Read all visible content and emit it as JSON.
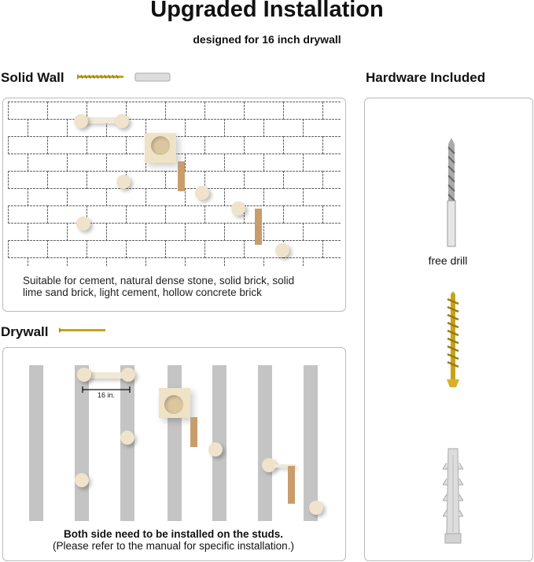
{
  "header": {
    "title": "Upgraded Installation",
    "subtitle": "designed for 16 inch drywall"
  },
  "solid_wall": {
    "heading": "Solid Wall",
    "caption_line1": "Suitable for cement, natural dense stone, solid brick, solid",
    "caption_line2": "lime sand brick, light cement, hollow concrete brick"
  },
  "drywall": {
    "heading": "Drywall",
    "measure_label": "16 in.",
    "caption_line1": "Both side need to be installed on the studs.",
    "caption_line2": "(Please refer to the manual for specific installation.)"
  },
  "hardware": {
    "heading": "Hardware Included",
    "drill_label": "free drill"
  },
  "colors": {
    "screw": "#c9a21c",
    "stud": "#c4c4c4",
    "wood": "#c89d6c",
    "plank": "#f1e8d6"
  }
}
